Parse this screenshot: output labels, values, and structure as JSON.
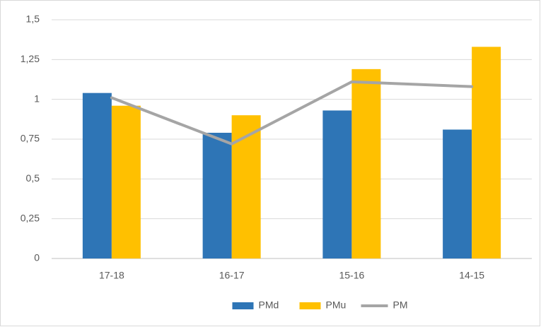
{
  "chart_data": {
    "type": "bar",
    "categories": [
      "17-18",
      "16-17",
      "15-16",
      "14-15"
    ],
    "series": [
      {
        "name": "PMd",
        "color": "#2e75b6",
        "values": [
          1.04,
          0.79,
          0.93,
          0.81
        ]
      },
      {
        "name": "PMu",
        "color": "#ffc000",
        "values": [
          0.96,
          0.9,
          1.19,
          1.33
        ]
      },
      {
        "name": "PM",
        "color": "#a5a5a5",
        "type": "line",
        "values": [
          1.01,
          0.72,
          1.11,
          1.08
        ]
      }
    ],
    "ylim": [
      0,
      1.5
    ],
    "yticks": [
      0,
      {
        "value": 0.25,
        "label": "0,25"
      },
      {
        "value": 0.5,
        "label": "0,5"
      },
      {
        "value": 0.75,
        "label": "0,75"
      },
      1,
      {
        "value": 1.25,
        "label": "1,25"
      },
      {
        "value": 1.5,
        "label": "1,5"
      }
    ],
    "grid": true,
    "legend": "bottom"
  }
}
